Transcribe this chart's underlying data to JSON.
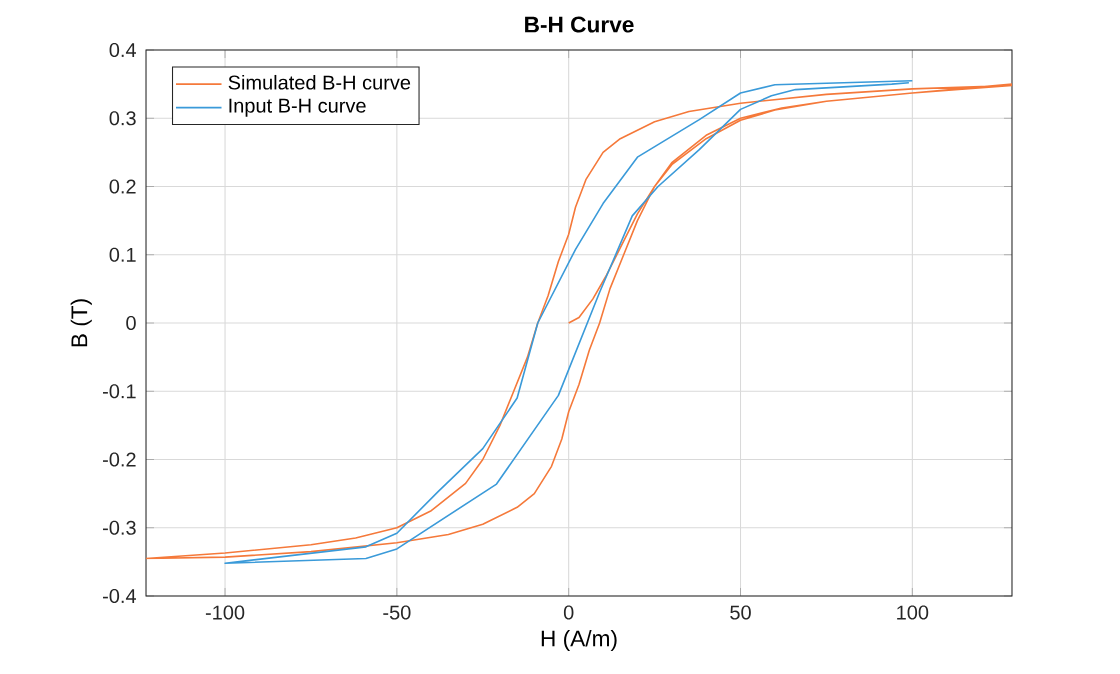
{
  "chart_data": {
    "type": "line",
    "title": "B-H Curve",
    "xlabel": "H (A/m)",
    "ylabel": "B (T)",
    "series": [
      {
        "name": "Simulated B-H curve",
        "color": "#f5793a",
        "x": [
          0,
          3,
          7,
          11,
          15,
          20,
          25,
          30,
          40,
          50,
          60,
          75,
          100,
          129,
          100,
          75,
          50,
          35,
          25,
          15,
          10,
          5,
          2,
          0,
          -3,
          -6,
          -9,
          -12,
          -16,
          -20,
          -25,
          -30,
          -40,
          -50,
          -62,
          -75,
          -100,
          -123,
          -100,
          -75,
          -50,
          -35,
          -25,
          -15,
          -10,
          -5,
          -2,
          0,
          3,
          6,
          9,
          12,
          16,
          20,
          25,
          30,
          40,
          50,
          62,
          75,
          100,
          129
        ],
        "values": [
          0,
          0.008,
          0.035,
          0.07,
          0.11,
          0.16,
          0.2,
          0.232,
          0.27,
          0.297,
          0.312,
          0.325,
          0.337,
          0.348,
          0.343,
          0.335,
          0.322,
          0.31,
          0.295,
          0.27,
          0.25,
          0.21,
          0.17,
          0.13,
          0.09,
          0.04,
          0.0,
          -0.05,
          -0.1,
          -0.15,
          -0.2,
          -0.235,
          -0.275,
          -0.3,
          -0.315,
          -0.325,
          -0.337,
          -0.345,
          -0.343,
          -0.335,
          -0.322,
          -0.31,
          -0.295,
          -0.27,
          -0.25,
          -0.21,
          -0.17,
          -0.13,
          -0.09,
          -0.04,
          0.0,
          0.05,
          0.1,
          0.15,
          0.2,
          0.235,
          0.275,
          0.3,
          0.315,
          0.325,
          0.337,
          0.35
        ]
      },
      {
        "name": "Input B-H curve",
        "color": "#3a9ad9",
        "x": [
          100,
          60,
          50,
          38,
          20,
          10,
          2,
          -9,
          -15,
          -25,
          -38,
          -50,
          -59,
          -100,
          -59,
          -50,
          -21,
          -3,
          9,
          18.5,
          26,
          38,
          50,
          59,
          66,
          94,
          99
        ],
        "values": [
          0.355,
          0.349,
          0.337,
          0.298,
          0.243,
          0.175,
          0.108,
          0.0,
          -0.11,
          -0.184,
          -0.247,
          -0.308,
          -0.328,
          -0.352,
          -0.345,
          -0.331,
          -0.236,
          -0.106,
          0.045,
          0.157,
          0.2,
          0.254,
          0.313,
          0.333,
          0.342,
          0.35,
          0.352
        ]
      }
    ],
    "xlim": [
      -123,
      129
    ],
    "ylim": [
      -0.4,
      0.4
    ],
    "xticks": [
      -100,
      -50,
      0,
      50,
      100
    ],
    "yticks": [
      -0.4,
      -0.3,
      -0.2,
      -0.1,
      0,
      0.1,
      0.2,
      0.3,
      0.4
    ],
    "grid": true,
    "legend": "top left",
    "marker": "none",
    "line_style": "solid"
  }
}
